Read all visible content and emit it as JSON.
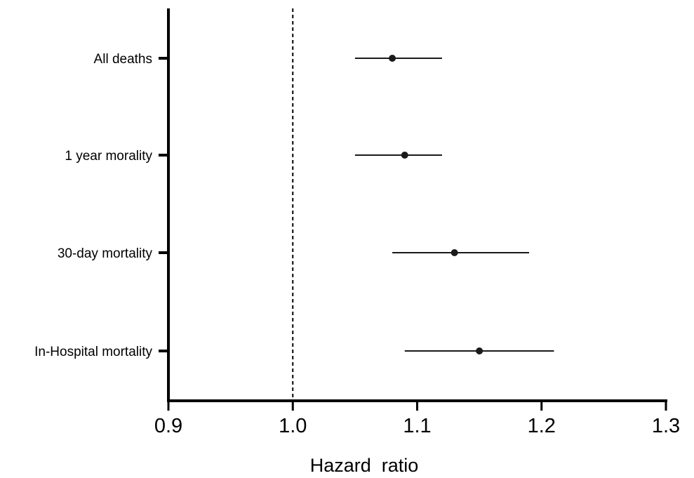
{
  "chart_data": {
    "type": "forest",
    "title": "",
    "xlabel": "Hazard  ratio",
    "ylabel": "",
    "xlim": [
      0.9,
      1.3
    ],
    "x_ticks": [
      "0.9",
      "1.0",
      "1.1",
      "1.2",
      "1.3"
    ],
    "reference_line": 1.0,
    "reference_line_style": "dashed",
    "grid": false,
    "legend": "none",
    "categories": [
      "All deaths",
      "1 year morality",
      "30-day mortality",
      "In-Hospital mortality"
    ],
    "series": [
      {
        "values": [
          1.08,
          1.09,
          1.13,
          1.15
        ],
        "lower": [
          1.05,
          1.05,
          1.08,
          1.09
        ],
        "upper": [
          1.12,
          1.12,
          1.19,
          1.21
        ]
      }
    ],
    "colors": {
      "axis": "#000000",
      "marker": "#1a1a1a"
    }
  }
}
